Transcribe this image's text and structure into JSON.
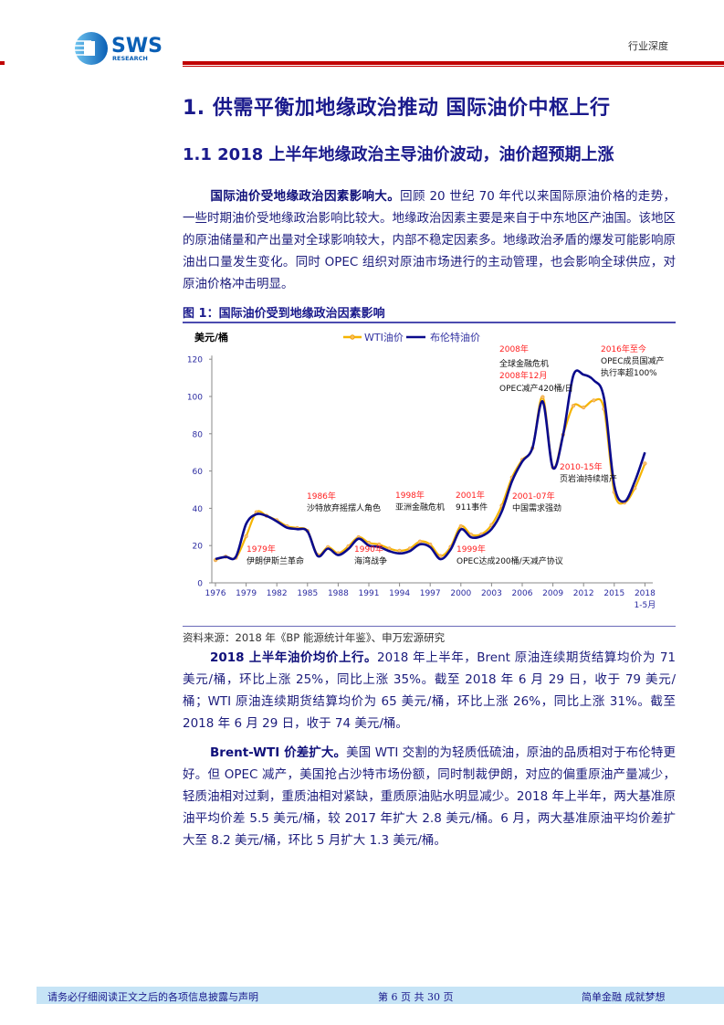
{
  "header": {
    "logo_text": "SWS",
    "logo_subtext": "RESEARCH",
    "doc_type": "行业深度",
    "brand_color": "#c00000"
  },
  "section_title": "1. 供需平衡加地缘政治推动  国际油价中枢上行",
  "subsection_title": "1.1 2018 上半年地缘政治主导油价波动，油价超预期上涨",
  "paragraphs": [
    {
      "lead": "国际油价受地缘政治因素影响大。",
      "body": "回顾 20 世纪 70 年代以来国际原油价格的走势，一些时期油价受地缘政治影响比较大。地缘政治因素主要是来自于中东地区产油国。该地区的原油储量和产出量对全球影响较大，内部不稳定因素多。地缘政治矛盾的爆发可能影响原油出口量发生变化。同时 OPEC 组织对原油市场进行的主动管理，也会影响全球供应，对原油价格冲击明显。"
    },
    {
      "lead": "2018 上半年油价均价上行。",
      "body": "2018 年上半年，Brent 原油连续期货结算均价为 71 美元/桶，环比上涨 25%，同比上涨 35%。截至 2018 年 6 月 29 日，收于 79 美元/桶；WTI 原油连续期货结算均价为 65 美元/桶，环比上涨 26%，同比上涨 31%。截至 2018 年 6 月 29 日，收于 74 美元/桶。"
    },
    {
      "lead": "Brent-WTI 价差扩大。",
      "body": "美国 WTI 交割的为轻质低硫油，原油的品质相对于布伦特更好。但 OPEC 减产，美国抢占沙特市场份额，同时制裁伊朗，对应的偏重原油产量减少，轻质油相对过剩，重质油相对紧缺，重质原油贴水明显减少。2018 年上半年，两大基准原油平均价差 5.5 美元/桶，较 2017 年扩大 2.8 美元/桶。6 月，两大基准原油平均价差扩大至 8.2 美元/桶，环比 5 月扩大 1.3 美元/桶。"
    }
  ],
  "figure": {
    "title": "图 1：国际油价受到地缘政治因素影响",
    "source": "资料来源：2018 年《BP 能源统计年鉴》、申万宏源研究"
  },
  "chart_data": {
    "type": "line",
    "ylabel": "美元/桶",
    "ylim": [
      0,
      120
    ],
    "yticks": [
      "0",
      "20",
      "40",
      "60",
      "80",
      "100",
      "120"
    ],
    "xticks": [
      "1976",
      "1979",
      "1982",
      "1985",
      "1988",
      "1991",
      "1994",
      "1997",
      "2000",
      "2003",
      "2006",
      "2009",
      "2012",
      "2015",
      "2018"
    ],
    "last_tick_sublabel": "1-5月",
    "legend_placement": "top",
    "grid": false,
    "x": [
      1976,
      1977,
      1978,
      1979,
      1980,
      1981,
      1982,
      1983,
      1984,
      1985,
      1986,
      1987,
      1988,
      1989,
      1990,
      1991,
      1992,
      1993,
      1994,
      1995,
      1996,
      1997,
      1998,
      1999,
      2000,
      2001,
      2002,
      2003,
      2004,
      2005,
      2006,
      2007,
      2008,
      2009,
      2010,
      2011,
      2012,
      2013,
      2014,
      2015,
      2016,
      2017,
      2018
    ],
    "series": [
      {
        "name": "WTI油价",
        "color": "#f5b400",
        "markers": true,
        "values": [
          12.2,
          14.0,
          13.5,
          25.0,
          37.9,
          36.0,
          33.6,
          30.4,
          29.4,
          27.9,
          15.0,
          19.2,
          15.9,
          19.6,
          24.5,
          21.5,
          20.6,
          18.4,
          17.2,
          18.4,
          22.2,
          20.6,
          14.4,
          19.3,
          30.4,
          25.9,
          26.1,
          31.1,
          41.4,
          56.5,
          66.0,
          72.3,
          99.7,
          61.9,
          79.5,
          95.0,
          94.1,
          97.9,
          93.3,
          48.7,
          43.1,
          50.8,
          64.0
        ]
      },
      {
        "name": "布伦特油价",
        "color": "#0a0a8c",
        "markers": false,
        "values": [
          12.8,
          13.9,
          14.0,
          31.6,
          36.8,
          35.9,
          33.0,
          29.6,
          28.8,
          27.6,
          14.4,
          18.4,
          14.9,
          18.2,
          23.7,
          20.0,
          19.3,
          17.0,
          15.8,
          17.0,
          20.7,
          19.1,
          12.7,
          17.9,
          28.7,
          24.4,
          25.0,
          28.8,
          38.3,
          54.5,
          65.1,
          72.4,
          97.3,
          61.7,
          79.5,
          111.3,
          111.7,
          108.7,
          99.0,
          52.4,
          43.7,
          54.2,
          70.0
        ]
      }
    ],
    "annotations": [
      {
        "year": "1979年",
        "event": [
          "伊朗伊斯兰革命"
        ]
      },
      {
        "year": "1986年",
        "event": [
          "沙特放弃摇摆人角色"
        ]
      },
      {
        "year": "1990年",
        "event": [
          "海湾战争"
        ]
      },
      {
        "year": "1998年",
        "event": [
          "亚洲金融危机"
        ]
      },
      {
        "year": "2001年",
        "event": [
          "911事件"
        ]
      },
      {
        "year": "1999年",
        "event": [
          "OPEC达成200桶/天减产协议"
        ]
      },
      {
        "year": "2001-07年",
        "event": [
          "中国需求强劲"
        ]
      },
      {
        "year": "2008年",
        "event": [
          "全球金融危机"
        ],
        "year2": "2008年12月",
        "event2": [
          "OPEC减产420桶/日"
        ]
      },
      {
        "year": "2016年至今",
        "event": [
          "OPEC成员国减产",
          "执行率超100%"
        ]
      },
      {
        "year": "2010-15年",
        "event": [
          "页岩油持续增产"
        ]
      }
    ],
    "annotation_year_color": "#ff2020"
  },
  "footer": {
    "disclaimer": "请务必仔细阅读正文之后的各项信息披露与声明",
    "page": "第 6 页  共 30 页",
    "slogan": "简单金融 成就梦想"
  }
}
